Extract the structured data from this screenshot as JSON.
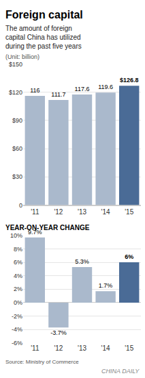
{
  "chart_data": [
    {
      "type": "bar",
      "title": "Foreign capital",
      "subtitle": [
        "The amount of foreign",
        "capital China has utilized",
        "during the past five years"
      ],
      "annotations": [
        "(Unit: billion)"
      ],
      "categories": [
        "'11",
        "'12",
        "'13",
        "'14",
        "'15"
      ],
      "values": [
        116,
        111.7,
        117.6,
        119.6,
        126.8
      ],
      "value_labels": [
        "116",
        "111.7",
        "117.6",
        "119.6",
        "$126.8"
      ],
      "data_labels": true,
      "colors": [
        "#aab9cc",
        "#aab9cc",
        "#aab9cc",
        "#aab9cc",
        "#4a6b96"
      ],
      "ylim": [
        0,
        150
      ],
      "yticks": [
        0,
        {
          "value": 30,
          "label": "$30"
        },
        {
          "value": 60,
          "label": "$60"
        },
        {
          "value": 90,
          "label": "$90"
        },
        {
          "value": 120,
          "label": "$120"
        },
        {
          "value": 150,
          "label": "$150"
        }
      ],
      "grid": true
    },
    {
      "type": "bar",
      "title": "YEAR-ON-YEAR CHANGE",
      "annotations": [
        "Source: Ministry of Commerce",
        "CHINA DAILY"
      ],
      "categories": [
        "'11",
        "'12",
        "'13",
        "'14",
        "'15"
      ],
      "values": [
        9.7,
        -3.7,
        5.3,
        1.7,
        6.0
      ],
      "value_labels": [
        "9.7%",
        "-3.7%",
        "5.3%",
        "1.7%",
        "6%"
      ],
      "data_labels": true,
      "colors": [
        "#aab9cc",
        "#aab9cc",
        "#aab9cc",
        "#aab9cc",
        "#4a6b96"
      ],
      "ylim": [
        -6,
        10
      ],
      "yticks": [
        {
          "value": -6,
          "label": "-6%"
        },
        {
          "value": -4,
          "label": "-4%"
        },
        {
          "value": -2,
          "label": "-2%"
        },
        {
          "value": 0,
          "label": "0%"
        },
        {
          "value": 2,
          "label": "2%"
        },
        {
          "value": 4,
          "label": "4%"
        },
        {
          "value": 6,
          "label": "6%"
        },
        {
          "value": 8,
          "label": "8%"
        },
        {
          "value": 10,
          "label": "10%"
        }
      ],
      "grid": true
    }
  ]
}
